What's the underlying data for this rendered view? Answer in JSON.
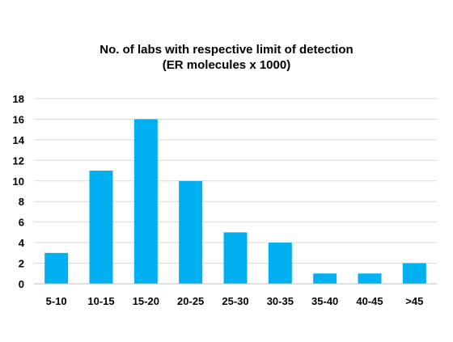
{
  "chart_data": {
    "type": "bar",
    "title": "No. of labs with respective limit of detection",
    "subtitle": "(ER molecules x 1000)",
    "xlabel": "",
    "ylabel": "",
    "categories": [
      "5-10",
      "10-15",
      "15-20",
      "20-25",
      "25-30",
      "30-35",
      "35-40",
      "40-45",
      ">45"
    ],
    "values": [
      3,
      11,
      16,
      10,
      5,
      4,
      1,
      1,
      2
    ],
    "ylim": [
      0,
      18
    ],
    "yticks": [
      0,
      2,
      4,
      6,
      8,
      10,
      12,
      14,
      16,
      18
    ],
    "grid": true,
    "legend": "none",
    "colors": {
      "bar": "#00b0f0",
      "grid": "#d9d9d9",
      "axis": "#bfbfbf"
    }
  }
}
